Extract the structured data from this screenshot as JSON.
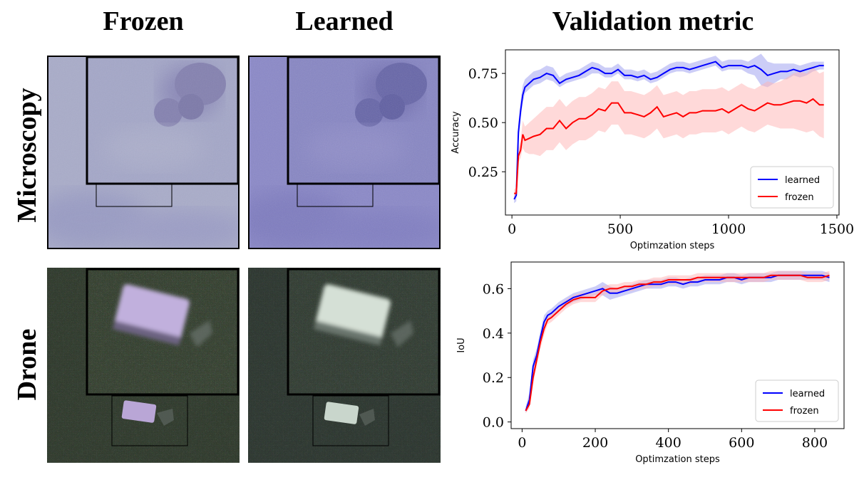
{
  "column_titles": {
    "frozen": "Frozen",
    "learned": "Learned",
    "metric": "Validation metric"
  },
  "row_titles": {
    "microscopy": "Microscopy",
    "drone": "Drone"
  },
  "panels": {
    "microscopy": {
      "frozen_bg": "#a9acc9",
      "learned_bg": "#8a88c8",
      "frozen_blob": "#8481b0",
      "learned_blob": "#6564a8"
    },
    "drone": {
      "frozen_bg": "#2f3a2c",
      "learned_bg": "#2d3730",
      "frozen_obj": "#b9a6d6",
      "learned_obj": "#c9d6cc"
    }
  },
  "chart_data": [
    {
      "type": "line",
      "xlabel": "Optimzation steps",
      "ylabel": "Accuracy",
      "xlim": [
        -30,
        1510
      ],
      "ylim": [
        0.03,
        0.87
      ],
      "xticks": [
        0,
        500,
        1000,
        1500
      ],
      "xtick_labels": [
        "0",
        "500",
        "1000",
        "1500"
      ],
      "yticks": [
        0.25,
        0.5,
        0.75
      ],
      "ytick_labels": [
        "0.25",
        "0.50",
        "0.75"
      ],
      "legend": "lower-right",
      "series": [
        {
          "name": "learned",
          "color": "#0000ff",
          "band_color": "#9a9cf0",
          "x": [
            10,
            20,
            30,
            40,
            50,
            60,
            80,
            100,
            130,
            160,
            190,
            220,
            250,
            280,
            310,
            340,
            370,
            400,
            430,
            460,
            490,
            520,
            550,
            580,
            610,
            640,
            670,
            700,
            730,
            760,
            790,
            820,
            850,
            880,
            910,
            940,
            970,
            1000,
            1030,
            1060,
            1090,
            1120,
            1150,
            1180,
            1210,
            1240,
            1270,
            1300,
            1330,
            1360,
            1390,
            1420,
            1440
          ],
          "y": [
            0.11,
            0.13,
            0.45,
            0.56,
            0.64,
            0.68,
            0.7,
            0.72,
            0.73,
            0.75,
            0.74,
            0.7,
            0.72,
            0.73,
            0.74,
            0.76,
            0.78,
            0.77,
            0.75,
            0.75,
            0.77,
            0.74,
            0.74,
            0.73,
            0.74,
            0.72,
            0.73,
            0.75,
            0.77,
            0.78,
            0.78,
            0.77,
            0.78,
            0.79,
            0.8,
            0.81,
            0.78,
            0.79,
            0.79,
            0.79,
            0.78,
            0.79,
            0.77,
            0.74,
            0.75,
            0.76,
            0.76,
            0.77,
            0.76,
            0.77,
            0.78,
            0.79,
            0.79
          ],
          "band_lo": [
            0.09,
            0.1,
            0.4,
            0.52,
            0.6,
            0.65,
            0.67,
            0.69,
            0.7,
            0.72,
            0.71,
            0.68,
            0.7,
            0.71,
            0.72,
            0.73,
            0.75,
            0.75,
            0.73,
            0.73,
            0.75,
            0.72,
            0.72,
            0.71,
            0.72,
            0.7,
            0.71,
            0.73,
            0.75,
            0.76,
            0.76,
            0.75,
            0.76,
            0.77,
            0.78,
            0.79,
            0.76,
            0.77,
            0.77,
            0.77,
            0.75,
            0.74,
            0.69,
            0.68,
            0.7,
            0.72,
            0.72,
            0.74,
            0.73,
            0.74,
            0.76,
            0.77,
            0.77
          ],
          "band_hi": [
            0.13,
            0.16,
            0.5,
            0.61,
            0.69,
            0.72,
            0.74,
            0.76,
            0.77,
            0.79,
            0.78,
            0.73,
            0.75,
            0.76,
            0.77,
            0.79,
            0.81,
            0.8,
            0.78,
            0.78,
            0.8,
            0.77,
            0.77,
            0.76,
            0.77,
            0.75,
            0.76,
            0.78,
            0.8,
            0.81,
            0.81,
            0.8,
            0.81,
            0.82,
            0.83,
            0.84,
            0.81,
            0.82,
            0.82,
            0.82,
            0.81,
            0.83,
            0.85,
            0.81,
            0.8,
            0.8,
            0.8,
            0.8,
            0.79,
            0.8,
            0.81,
            0.81,
            0.81
          ]
        },
        {
          "name": "frozen",
          "color": "#ff0000",
          "band_color": "#ffb3b3",
          "x": [
            10,
            20,
            30,
            40,
            50,
            60,
            80,
            100,
            130,
            160,
            190,
            220,
            250,
            280,
            310,
            340,
            370,
            400,
            430,
            460,
            490,
            520,
            550,
            580,
            610,
            640,
            670,
            700,
            730,
            760,
            790,
            820,
            850,
            880,
            910,
            940,
            970,
            1000,
            1030,
            1060,
            1090,
            1120,
            1150,
            1180,
            1210,
            1240,
            1270,
            1300,
            1330,
            1360,
            1390,
            1420,
            1440
          ],
          "y": [
            0.14,
            0.14,
            0.33,
            0.36,
            0.44,
            0.41,
            0.42,
            0.43,
            0.44,
            0.47,
            0.47,
            0.51,
            0.47,
            0.5,
            0.52,
            0.52,
            0.54,
            0.57,
            0.56,
            0.6,
            0.6,
            0.55,
            0.55,
            0.54,
            0.53,
            0.55,
            0.58,
            0.53,
            0.54,
            0.55,
            0.53,
            0.55,
            0.55,
            0.56,
            0.56,
            0.56,
            0.57,
            0.55,
            0.57,
            0.59,
            0.57,
            0.56,
            0.58,
            0.6,
            0.59,
            0.59,
            0.6,
            0.61,
            0.61,
            0.6,
            0.62,
            0.59,
            0.59
          ],
          "band_lo": [
            0.12,
            0.12,
            0.3,
            0.32,
            0.37,
            0.35,
            0.34,
            0.34,
            0.33,
            0.36,
            0.36,
            0.4,
            0.36,
            0.39,
            0.41,
            0.41,
            0.43,
            0.46,
            0.45,
            0.49,
            0.49,
            0.44,
            0.44,
            0.43,
            0.42,
            0.44,
            0.47,
            0.42,
            0.43,
            0.44,
            0.42,
            0.44,
            0.44,
            0.45,
            0.45,
            0.45,
            0.46,
            0.44,
            0.46,
            0.48,
            0.46,
            0.45,
            0.47,
            0.49,
            0.48,
            0.47,
            0.47,
            0.47,
            0.46,
            0.45,
            0.46,
            0.43,
            0.42
          ],
          "band_hi": [
            0.16,
            0.17,
            0.37,
            0.41,
            0.51,
            0.48,
            0.5,
            0.52,
            0.55,
            0.58,
            0.58,
            0.62,
            0.58,
            0.61,
            0.63,
            0.63,
            0.65,
            0.68,
            0.67,
            0.71,
            0.71,
            0.66,
            0.66,
            0.65,
            0.64,
            0.66,
            0.69,
            0.64,
            0.65,
            0.66,
            0.64,
            0.66,
            0.66,
            0.67,
            0.67,
            0.67,
            0.68,
            0.66,
            0.68,
            0.7,
            0.68,
            0.67,
            0.69,
            0.71,
            0.7,
            0.71,
            0.73,
            0.75,
            0.76,
            0.75,
            0.78,
            0.75,
            0.76
          ]
        }
      ]
    },
    {
      "type": "line",
      "xlabel": "Optimzation steps",
      "ylabel": "IoU",
      "xlim": [
        -30,
        880
      ],
      "ylim": [
        -0.03,
        0.72
      ],
      "xticks": [
        0,
        200,
        400,
        600,
        800
      ],
      "xtick_labels": [
        "0",
        "200",
        "400",
        "600",
        "800"
      ],
      "yticks": [
        0.0,
        0.2,
        0.4,
        0.6
      ],
      "ytick_labels": [
        "0.0",
        "0.2",
        "0.4",
        "0.6"
      ],
      "legend": "lower-right",
      "series": [
        {
          "name": "learned",
          "color": "#0000ff",
          "band_color": "#9a9cf0",
          "x": [
            10,
            20,
            30,
            40,
            50,
            60,
            70,
            80,
            100,
            120,
            140,
            160,
            180,
            200,
            220,
            240,
            260,
            280,
            300,
            320,
            340,
            360,
            380,
            400,
            420,
            440,
            460,
            480,
            500,
            520,
            540,
            560,
            580,
            600,
            620,
            640,
            660,
            680,
            700,
            720,
            740,
            760,
            780,
            800,
            820,
            840
          ],
          "y": [
            0.05,
            0.1,
            0.25,
            0.3,
            0.38,
            0.45,
            0.48,
            0.49,
            0.52,
            0.54,
            0.56,
            0.57,
            0.58,
            0.59,
            0.6,
            0.58,
            0.58,
            0.59,
            0.6,
            0.61,
            0.62,
            0.62,
            0.62,
            0.63,
            0.63,
            0.62,
            0.63,
            0.63,
            0.64,
            0.64,
            0.64,
            0.65,
            0.65,
            0.64,
            0.65,
            0.65,
            0.65,
            0.65,
            0.66,
            0.66,
            0.66,
            0.66,
            0.66,
            0.66,
            0.66,
            0.65
          ],
          "band_lo": [
            0.04,
            0.08,
            0.22,
            0.27,
            0.35,
            0.42,
            0.46,
            0.47,
            0.5,
            0.52,
            0.54,
            0.55,
            0.56,
            0.57,
            0.57,
            0.55,
            0.56,
            0.57,
            0.58,
            0.59,
            0.6,
            0.6,
            0.6,
            0.61,
            0.61,
            0.6,
            0.61,
            0.61,
            0.62,
            0.62,
            0.62,
            0.63,
            0.63,
            0.62,
            0.63,
            0.63,
            0.63,
            0.63,
            0.64,
            0.64,
            0.64,
            0.64,
            0.64,
            0.64,
            0.64,
            0.63
          ],
          "band_hi": [
            0.07,
            0.13,
            0.28,
            0.33,
            0.41,
            0.48,
            0.5,
            0.51,
            0.54,
            0.56,
            0.58,
            0.59,
            0.6,
            0.61,
            0.63,
            0.61,
            0.6,
            0.61,
            0.62,
            0.63,
            0.64,
            0.64,
            0.64,
            0.65,
            0.65,
            0.64,
            0.65,
            0.65,
            0.66,
            0.66,
            0.66,
            0.67,
            0.67,
            0.66,
            0.67,
            0.67,
            0.67,
            0.67,
            0.68,
            0.68,
            0.68,
            0.68,
            0.68,
            0.68,
            0.68,
            0.67
          ]
        },
        {
          "name": "frozen",
          "color": "#ff0000",
          "band_color": "#ffb3b3",
          "x": [
            10,
            20,
            30,
            40,
            50,
            60,
            70,
            80,
            100,
            120,
            140,
            160,
            180,
            200,
            220,
            240,
            260,
            280,
            300,
            320,
            340,
            360,
            380,
            400,
            420,
            440,
            460,
            480,
            500,
            520,
            540,
            560,
            580,
            600,
            620,
            640,
            660,
            680,
            700,
            720,
            740,
            760,
            780,
            800,
            820,
            840
          ],
          "y": [
            0.05,
            0.08,
            0.2,
            0.28,
            0.36,
            0.42,
            0.46,
            0.47,
            0.5,
            0.53,
            0.55,
            0.56,
            0.56,
            0.56,
            0.59,
            0.6,
            0.6,
            0.61,
            0.61,
            0.62,
            0.62,
            0.63,
            0.63,
            0.64,
            0.64,
            0.64,
            0.64,
            0.65,
            0.65,
            0.65,
            0.65,
            0.65,
            0.65,
            0.65,
            0.65,
            0.65,
            0.65,
            0.66,
            0.66,
            0.66,
            0.66,
            0.66,
            0.65,
            0.65,
            0.65,
            0.66
          ],
          "band_lo": [
            0.04,
            0.06,
            0.17,
            0.25,
            0.33,
            0.39,
            0.44,
            0.45,
            0.48,
            0.51,
            0.53,
            0.54,
            0.54,
            0.54,
            0.57,
            0.58,
            0.58,
            0.59,
            0.59,
            0.6,
            0.6,
            0.61,
            0.61,
            0.62,
            0.62,
            0.62,
            0.62,
            0.63,
            0.63,
            0.63,
            0.63,
            0.63,
            0.63,
            0.63,
            0.63,
            0.63,
            0.63,
            0.64,
            0.64,
            0.64,
            0.64,
            0.64,
            0.63,
            0.63,
            0.63,
            0.64
          ],
          "band_hi": [
            0.06,
            0.1,
            0.23,
            0.31,
            0.39,
            0.45,
            0.48,
            0.49,
            0.52,
            0.55,
            0.57,
            0.58,
            0.58,
            0.58,
            0.61,
            0.62,
            0.62,
            0.63,
            0.63,
            0.64,
            0.64,
            0.65,
            0.65,
            0.66,
            0.66,
            0.66,
            0.66,
            0.67,
            0.67,
            0.67,
            0.67,
            0.67,
            0.67,
            0.67,
            0.67,
            0.67,
            0.67,
            0.68,
            0.68,
            0.68,
            0.68,
            0.68,
            0.67,
            0.67,
            0.67,
            0.68
          ]
        }
      ]
    }
  ]
}
